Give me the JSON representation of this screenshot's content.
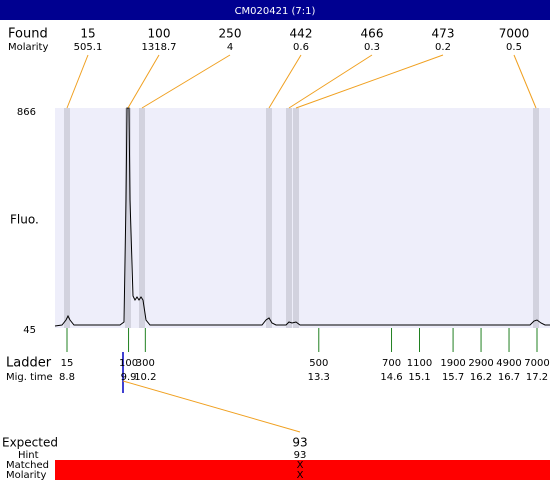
{
  "title": "CM020421 (7:1)",
  "found": {
    "label": "Found",
    "sublabel": "Molarity",
    "peaks": [
      {
        "size": "15",
        "molarity": "505.1"
      },
      {
        "size": "100",
        "molarity": "1318.7"
      },
      {
        "size": "250",
        "molarity": "4"
      },
      {
        "size": "442",
        "molarity": "0.6"
      },
      {
        "size": "466",
        "molarity": "0.3"
      },
      {
        "size": "473",
        "molarity": "0.2"
      },
      {
        "size": "7000",
        "molarity": "0.5"
      }
    ]
  },
  "y_axis": {
    "label": "Fluo.",
    "max": "866",
    "min": "45"
  },
  "ladder": {
    "label": "Ladder",
    "sublabel": "Mig. time",
    "peaks": [
      {
        "size": "15",
        "time": "8.8"
      },
      {
        "size": "100",
        "time": "9.9"
      },
      {
        "size": "300",
        "time": "10.2"
      },
      {
        "size": "500",
        "time": "13.3"
      },
      {
        "size": "700",
        "time": "14.6"
      },
      {
        "size": "1100",
        "time": "15.1"
      },
      {
        "size": "1900",
        "time": "15.7"
      },
      {
        "size": "2900",
        "time": "16.2"
      },
      {
        "size": "4900",
        "time": "16.7"
      },
      {
        "size": "7000",
        "time": "17.2"
      }
    ]
  },
  "expected": {
    "label": "Expected",
    "value": "93",
    "hint_label": "Hint",
    "hint": "93",
    "matched_label": "Matched",
    "matched": "X",
    "molarity_label": "Molarity",
    "molarity": "X"
  }
}
